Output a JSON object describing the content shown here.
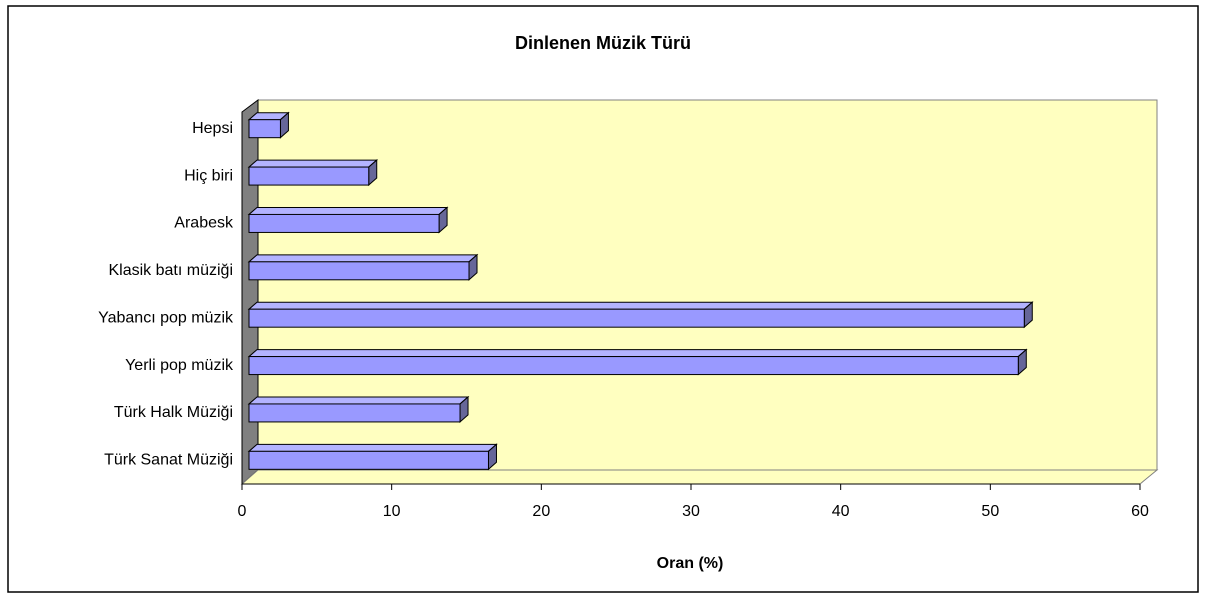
{
  "chart_data": {
    "type": "bar",
    "orientation": "horizontal",
    "title": "Dinlenen Müzik Türü",
    "x_label": "Oran (%)",
    "categories": [
      "Türk Sanat Müziği",
      "Türk Halk Müziği",
      "Yerli pop müzik",
      "Yabancı pop müzik",
      "Klasik batı müziği",
      "Arabesk",
      "Hiç biri",
      "Hepsi"
    ],
    "values": [
      16.0,
      14.1,
      51.4,
      51.8,
      14.7,
      12.7,
      8.0,
      2.1
    ],
    "color": "#9999ff",
    "xlim": [
      0,
      60
    ],
    "xticks": [
      0,
      10,
      20,
      30,
      40,
      50,
      60
    ]
  }
}
